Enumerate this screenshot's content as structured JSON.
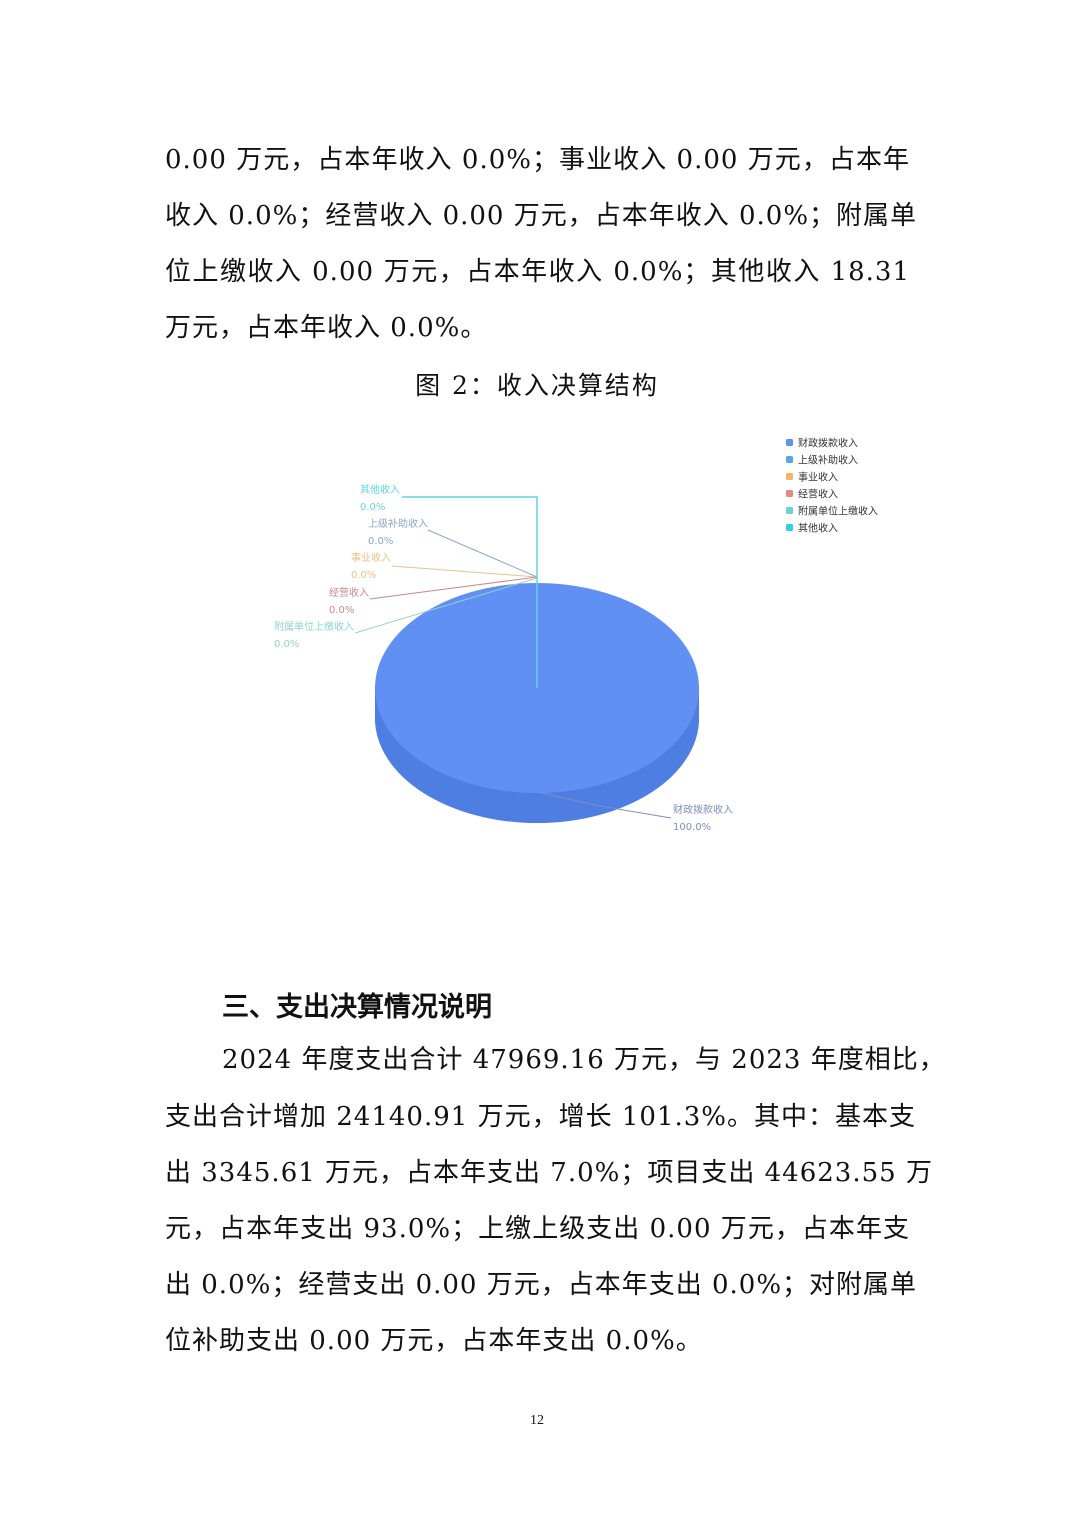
{
  "intro_paragraph": {
    "lines": [
      "0.00 万元，占本年收入 0.0%；事业收入 0.00 万元，占本年",
      "收入 0.0%；经营收入 0.00 万元，占本年收入 0.0%；附属单",
      "位上缴收入 0.00 万元，占本年收入 0.0%；其他收入 18.31",
      "万元，占本年收入 0.0%。"
    ]
  },
  "figure_caption": "图 2：收入决算结构",
  "chart_data": {
    "type": "pie",
    "style": "3d",
    "title": "",
    "categories": [
      "财政拨款收入",
      "上级补助收入",
      "事业收入",
      "经营收入",
      "附属单位上缴收入",
      "其他收入"
    ],
    "values": [
      100.0,
      0.0,
      0.0,
      0.0,
      0.0,
      0.0
    ],
    "labels": [
      "100.0%",
      "0.0%",
      "0.0%",
      "0.0%",
      "0.0%",
      "0.0%"
    ],
    "colors": [
      "#6190f4",
      "#5aa5e6",
      "#f5b26a",
      "#e88684",
      "#6ed3cf",
      "#2bd2e3"
    ],
    "legend": "top-right"
  },
  "section_heading": "三、支出决算情况说明",
  "expense_paragraph": {
    "lines": [
      "2024 年度支出合计 47969.16 万元，与 2023 年度相比，",
      "支出合计增加 24140.91 万元，增长 101.3%。其中：基本支",
      "出 3345.61 万元，占本年支出 7.0%；项目支出 44623.55 万",
      "元，占本年支出 93.0%；上缴上级支出 0.00 万元，占本年支",
      "出 0.0%；经营支出 0.00 万元，占本年支出 0.0%；对附属单",
      "位补助支出 0.00 万元，占本年支出 0.0%。"
    ]
  },
  "page_number": "12"
}
